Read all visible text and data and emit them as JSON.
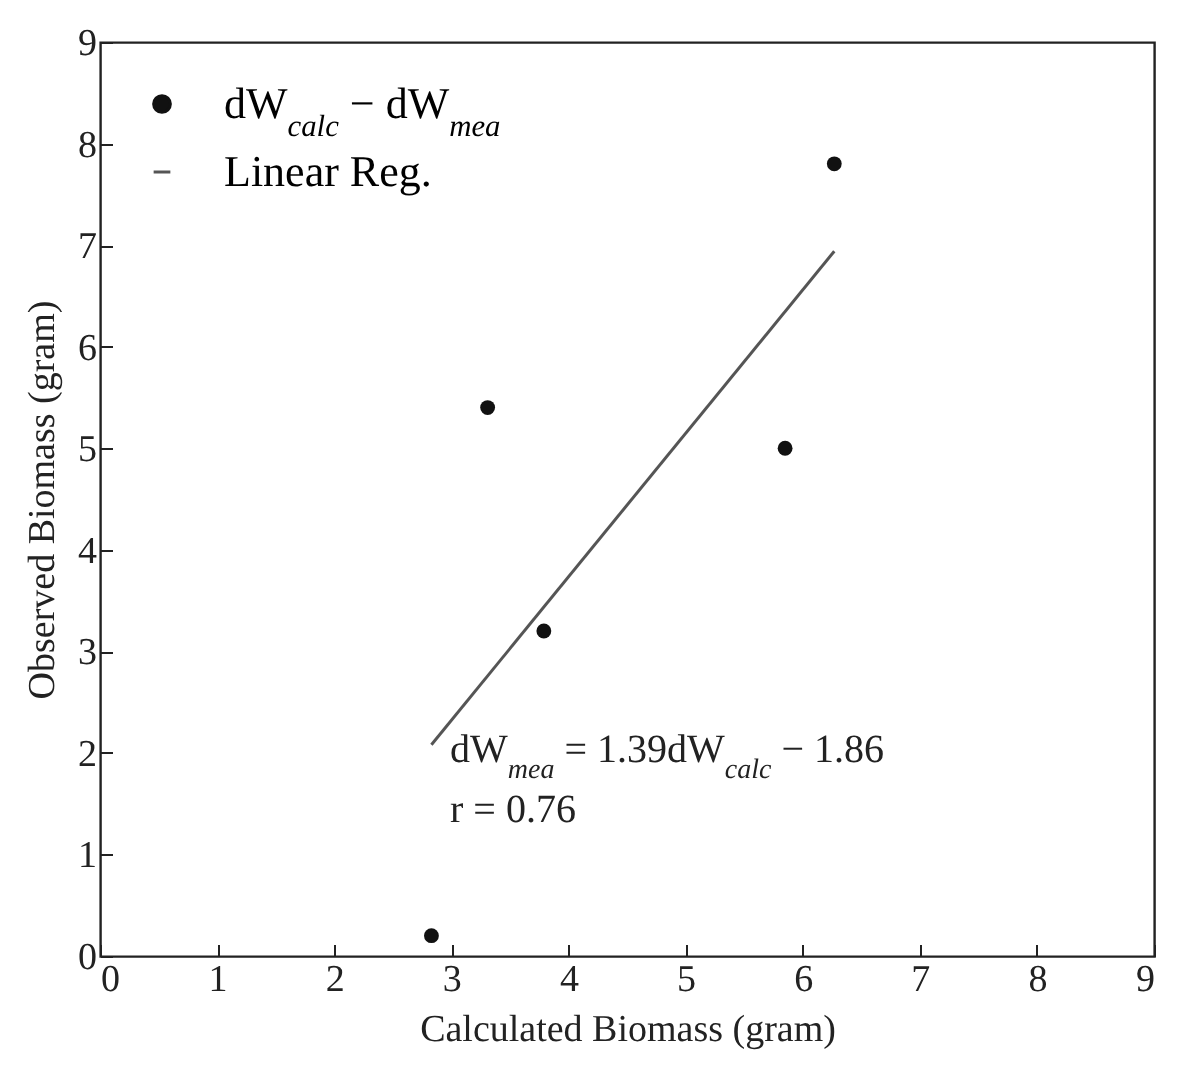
{
  "chart_data": {
    "type": "scatter",
    "xlabel": "Calculated Biomass (gram)",
    "ylabel": "Observed Biomass (gram)",
    "xlim": [
      0,
      9
    ],
    "ylim": [
      0,
      9
    ],
    "xticks": [
      0,
      1,
      2,
      3,
      4,
      5,
      6,
      7,
      8,
      9
    ],
    "yticks": [
      0,
      1,
      2,
      3,
      4,
      5,
      6,
      7,
      8,
      9
    ],
    "grid": false,
    "legend": "top left",
    "series": [
      {
        "name": "dW$_{calc}$ − dW$_{mea}$",
        "marker": "circle",
        "color": "#111111",
        "x": [
          2.83,
          3.31,
          3.79,
          5.85,
          6.27
        ],
        "values": [
          0.2,
          5.4,
          3.2,
          5.0,
          7.8
        ]
      },
      {
        "name": "Linear Reg.",
        "type": "line",
        "line_style": "solid",
        "color": "#555555",
        "x": [
          2.83,
          6.27
        ],
        "values": [
          2.08,
          6.94
        ]
      }
    ],
    "annotations": [
      "dW$_{mea}$ = 1.39dW$_{calc}$ − 1.86",
      "r = 0.76"
    ]
  }
}
